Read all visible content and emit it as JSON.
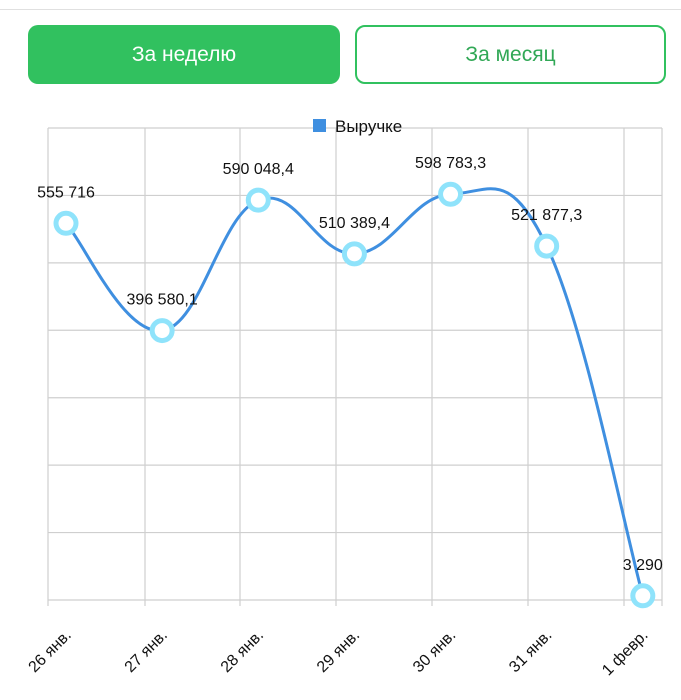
{
  "tabs": {
    "week_label": "За неделю",
    "month_label": "За месяц",
    "active_color": "#31c15f",
    "inactive_text_color": "#31a856"
  },
  "chart_data": {
    "type": "line",
    "categories": [
      "26 янв.",
      "27 янв.",
      "28 янв.",
      "29 янв.",
      "30 янв.",
      "31 янв.",
      "1 февр."
    ],
    "series": [
      {
        "name": "Выручке",
        "values": [
          555716,
          396580.1,
          590048.4,
          510389.4,
          598783.3,
          521877.3,
          3290
        ],
        "labels": [
          "555 716",
          "396 580,1",
          "590 048,4",
          "510 389,4",
          "598 783,3",
          "521 877,3",
          "3 290"
        ],
        "color": "#3f8fe0",
        "marker_color": "#8fe3fb"
      }
    ],
    "ylim": [
      0,
      700000
    ],
    "smooth": true,
    "grid": true,
    "legend": "top-center",
    "y_tick_labels_shown": false
  }
}
